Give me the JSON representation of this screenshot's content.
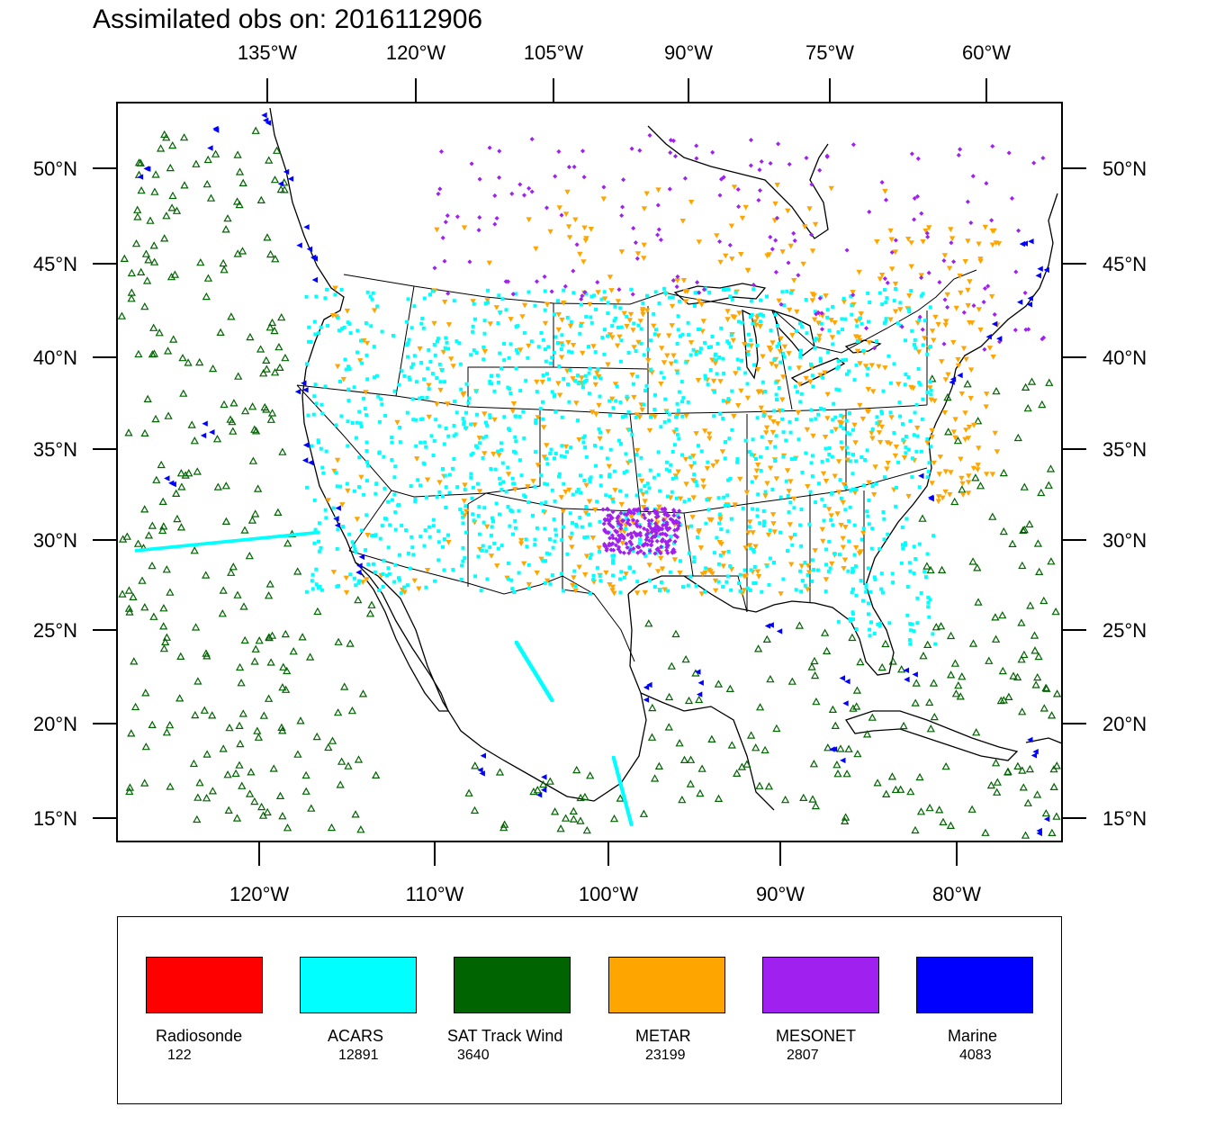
{
  "title": "Assimilated obs on: 2016112906",
  "map": {
    "top_ticks": [
      "135°W",
      "120°W",
      "105°W",
      "90°W",
      "75°W",
      "60°W"
    ],
    "bottom_ticks": [
      "120°W",
      "110°W",
      "100°W",
      "90°W",
      "80°W"
    ],
    "lat_ticks": [
      "50°N",
      "45°N",
      "40°N",
      "35°N",
      "30°N",
      "25°N",
      "20°N",
      "15°N"
    ],
    "lon_range": [
      -128,
      -74
    ],
    "lat_range": [
      13.6,
      53.5
    ]
  },
  "legend": [
    {
      "name": "Radiosonde",
      "count": "122",
      "color": "#ff0000"
    },
    {
      "name": "ACARS",
      "count": "12891",
      "color": "#00ffff"
    },
    {
      "name": "SAT Track Wind",
      "count": "3640",
      "color": "#006400"
    },
    {
      "name": "METAR",
      "count": "23199",
      "color": "#ffa500"
    },
    {
      "name": "MESONET",
      "count": "2807",
      "color": "#a020f0"
    },
    {
      "name": "Marine",
      "count": "4083",
      "color": "#0000ff"
    }
  ]
}
